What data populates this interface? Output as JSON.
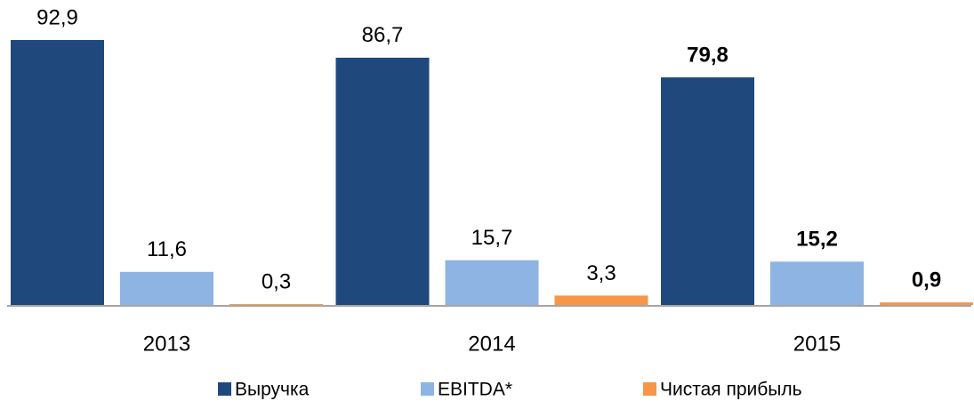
{
  "chart_data": {
    "type": "bar",
    "categories": [
      "2013",
      "2014",
      "2015"
    ],
    "series": [
      {
        "name": "Выручка",
        "color": "#1f497d",
        "values": [
          92.9,
          86.7,
          79.8
        ],
        "value_labels": [
          "92,9",
          "86,7",
          "79,8"
        ]
      },
      {
        "name": "EBITDA*",
        "color": "#8db4e2",
        "values": [
          11.6,
          15.7,
          15.2
        ],
        "value_labels": [
          "11,6",
          "15,7",
          "15,2"
        ]
      },
      {
        "name": "Чистая прибыль",
        "color": "#f79646",
        "values": [
          0.3,
          3.3,
          0.9
        ],
        "value_labels": [
          "0,3",
          "3,3",
          "0,9"
        ]
      }
    ]
  }
}
